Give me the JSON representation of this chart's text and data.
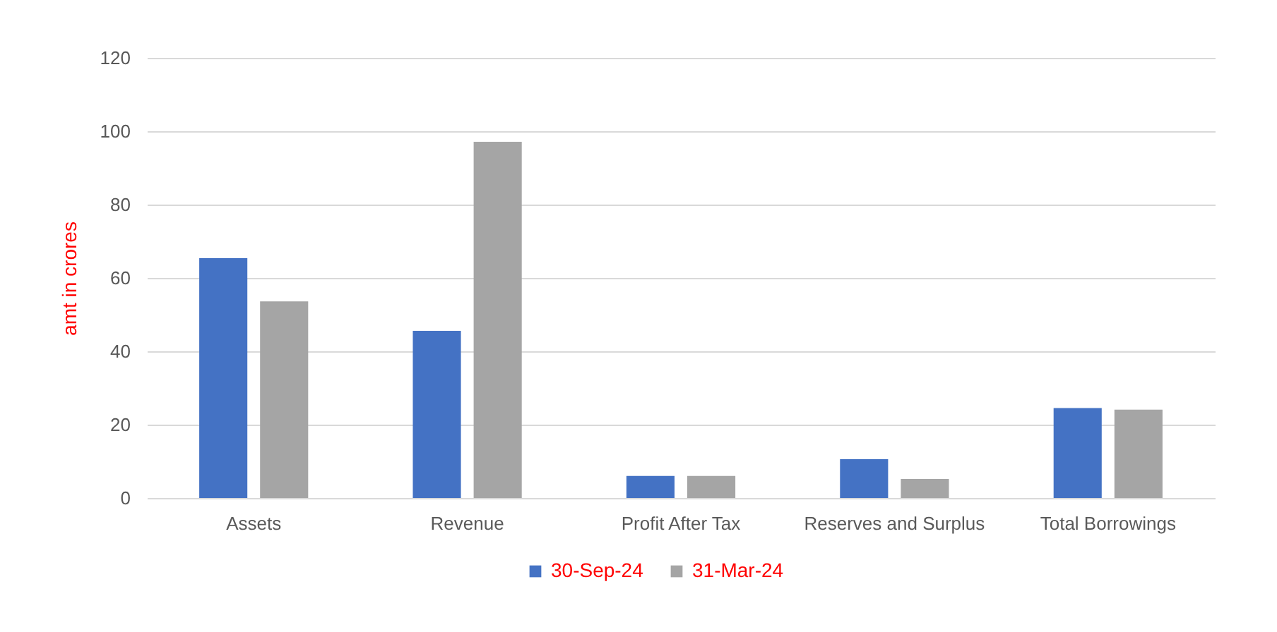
{
  "chart_data": {
    "type": "bar",
    "ylabel": "amt in crores",
    "categories": [
      "Assets",
      "Revenue",
      "Profit After Tax",
      "Reserves and Surplus",
      "Total Borrowings"
    ],
    "series": [
      {
        "name": "30-Sep-24",
        "color": "#4472c4",
        "values": [
          65.4,
          45.6,
          6.0,
          10.6,
          24.5
        ]
      },
      {
        "name": "31-Mar-24",
        "color": "#a5a5a5",
        "values": [
          53.6,
          97.1,
          6.0,
          5.2,
          24.1
        ]
      }
    ],
    "ylim": [
      0,
      120
    ],
    "yticks": [
      0,
      20,
      40,
      60,
      80,
      100,
      120
    ],
    "grid": "y",
    "legend": "bottom"
  }
}
